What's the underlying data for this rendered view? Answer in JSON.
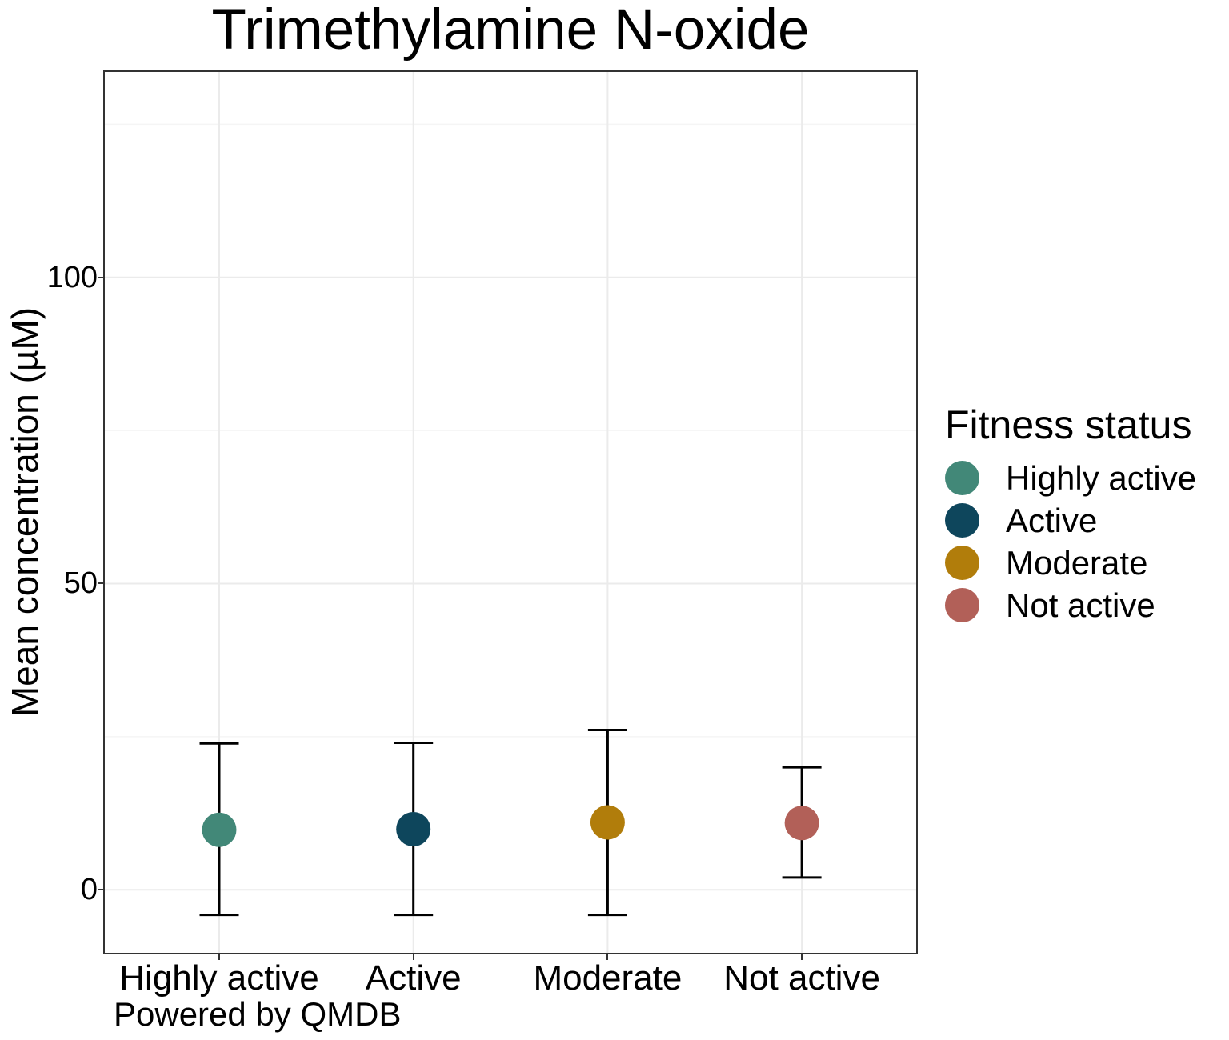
{
  "chart_data": {
    "type": "point-errorbar",
    "title": "Trimethylamine N-oxide",
    "ylabel": "Mean concentration (µM)",
    "xlabel": "",
    "caption": "Powered by QMDB",
    "categories": [
      "Highly active",
      "Active",
      "Moderate",
      "Not active"
    ],
    "series": [
      {
        "name": "Highly active",
        "color": "#428878",
        "mean": 9.8,
        "lower": -4.1,
        "upper": 23.9
      },
      {
        "name": "Active",
        "color": "#0E465C",
        "mean": 9.9,
        "lower": -4.1,
        "upper": 24.0
      },
      {
        "name": "Moderate",
        "color": "#B17D0B",
        "mean": 11.0,
        "lower": -4.1,
        "upper": 26.1
      },
      {
        "name": "Not active",
        "color": "#B26058",
        "mean": 10.9,
        "lower": 2.0,
        "upper": 20.0
      }
    ],
    "ylim": [
      -10.6,
      133.8
    ],
    "y_major_ticks": [
      0,
      50,
      100
    ],
    "y_minor_gridlines": [
      25,
      75,
      125
    ],
    "grid": true,
    "legend": {
      "title": "Fitness status",
      "position": "right",
      "entries": [
        "Highly active",
        "Active",
        "Moderate",
        "Not active"
      ]
    },
    "colors": {
      "grid_major": "#EBEBEB",
      "grid_minor": "#F5F5F5",
      "panel_border": "#333333",
      "tick": "#333333",
      "errorbar": "#000000",
      "text": "#000000",
      "background": "#FFFFFF"
    }
  }
}
